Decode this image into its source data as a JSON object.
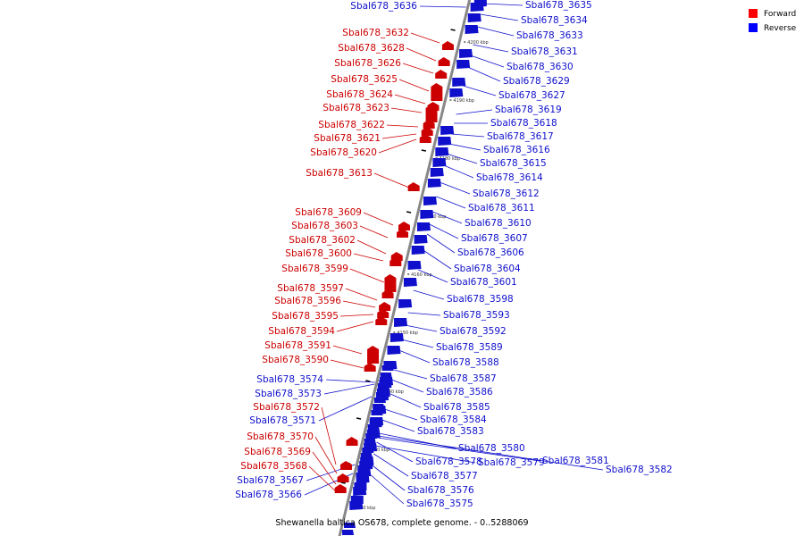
{
  "caption": "Shewanella baltica OS678, complete genome. - 0..5288069",
  "legend": {
    "forward": "Forward",
    "reverse": "Reverse",
    "forward_color": "#ff0000",
    "reverse_color": "#0000ff"
  },
  "colors": {
    "forward": "#cc0000",
    "reverse": "#1010cc",
    "axis": "#888888"
  },
  "ticks": [
    "4120 kbp",
    "4130 kbp",
    "4140 kbp",
    "4150 kbp",
    "4160 kbp",
    "4170 kbp",
    "4180 kbp",
    "4190 kbp",
    "4200 kbp"
  ],
  "forward_genes": [
    "Sbal678_3632",
    "Sbal678_3628",
    "Sbal678_3626",
    "Sbal678_3625",
    "Sbal678_3624",
    "Sbal678_3623",
    "Sbal678_3622",
    "Sbal678_3621",
    "Sbal678_3620",
    "Sbal678_3613",
    "Sbal678_3609",
    "Sbal678_3603",
    "Sbal678_3602",
    "Sbal678_3600",
    "Sbal678_3599",
    "Sbal678_3597",
    "Sbal678_3596",
    "Sbal678_3595",
    "Sbal678_3594",
    "Sbal678_3591",
    "Sbal678_3590",
    "Sbal678_3572",
    "Sbal678_3570",
    "Sbal678_3569",
    "Sbal678_3568"
  ],
  "reverse_genes_left": [
    "Sbal678_3636",
    "Sbal678_3574",
    "Sbal678_3573",
    "Sbal678_3571",
    "Sbal678_3567",
    "Sbal678_3566"
  ],
  "reverse_genes_right": [
    "Sbal678_3635",
    "Sbal678_3634",
    "Sbal678_3633",
    "Sbal678_3631",
    "Sbal678_3630",
    "Sbal678_3629",
    "Sbal678_3627",
    "Sbal678_3619",
    "Sbal678_3618",
    "Sbal678_3617",
    "Sbal678_3616",
    "Sbal678_3615",
    "Sbal678_3614",
    "Sbal678_3612",
    "Sbal678_3611",
    "Sbal678_3610",
    "Sbal678_3607",
    "Sbal678_3606",
    "Sbal678_3604",
    "Sbal678_3601",
    "Sbal678_3598",
    "Sbal678_3593",
    "Sbal678_3592",
    "Sbal678_3589",
    "Sbal678_3588",
    "Sbal678_3587",
    "Sbal678_3586",
    "Sbal678_3585",
    "Sbal678_3584",
    "Sbal678_3583",
    "Sbal678_3580",
    "Sbal678_3578",
    "Sbal678_3579",
    "Sbal678_3581",
    "Sbal678_3582",
    "Sbal678_3577",
    "Sbal678_3576",
    "Sbal678_3575"
  ]
}
